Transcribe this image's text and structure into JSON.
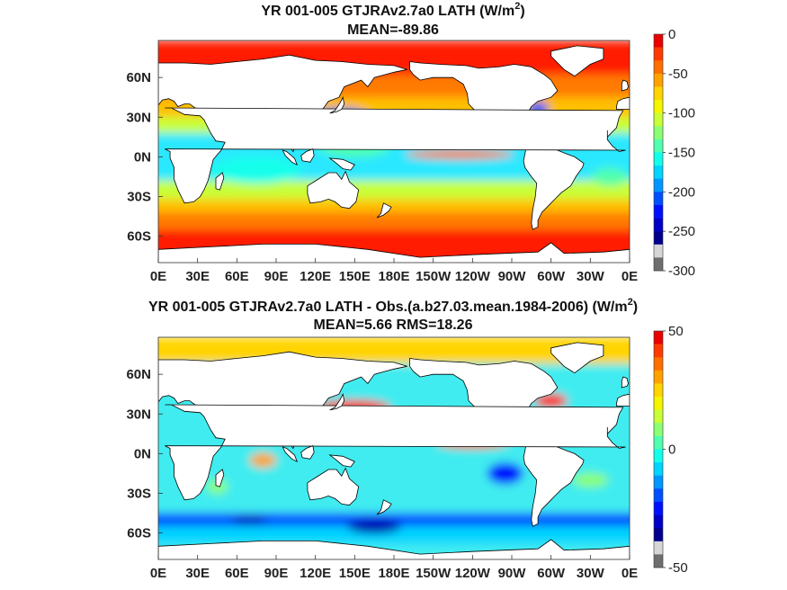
{
  "chart_data": [
    {
      "type": "heatmap",
      "title_line1": "YR 001-005 GTJRAv2.7a0  LATH (W/m",
      "title_sup": "2",
      "title_close": ")",
      "title_line2": "MEAN=-89.86",
      "x_ticks": [
        "0E",
        "30E",
        "60E",
        "90E",
        "120E",
        "150E",
        "180E",
        "150W",
        "120W",
        "90W",
        "60W",
        "30W",
        "0E"
      ],
      "x_values": [
        0,
        30,
        60,
        90,
        120,
        150,
        180,
        210,
        240,
        270,
        300,
        330,
        360
      ],
      "y_ticks": [
        "60N",
        "30N",
        "0N",
        "30S",
        "60S"
      ],
      "y_values": [
        60,
        30,
        0,
        -30,
        -60
      ],
      "xlim": [
        0,
        360
      ],
      "ylim": [
        -80,
        88
      ],
      "colorbar": {
        "ticks": [
          "0",
          "-50",
          "-100",
          "-150",
          "-200",
          "-250",
          "-300"
        ],
        "tick_values": [
          0,
          -50,
          -100,
          -150,
          -200,
          -250,
          -300
        ],
        "range": [
          -300,
          0
        ],
        "colors": [
          "#e90000",
          "#ff3a00",
          "#ff6e00",
          "#ffa200",
          "#ffd400",
          "#f5f500",
          "#c8ff37",
          "#8cff73",
          "#50ffaf",
          "#14ffeb",
          "#00d4ff",
          "#0096ff",
          "#0050ff",
          "#0010ff",
          "#0000c8",
          "#00008c",
          "#d6d6d6",
          "#6e6e6e"
        ]
      },
      "field_colors": {
        "land": "#ffffff",
        "high_lat": "#ff1a00",
        "mid_lat": "#ff9600",
        "subtrop": "#c8ff37",
        "tropics": "#2aeeff",
        "warm_pool": "#50ffaf",
        "kuroshio": "#0060ff"
      }
    },
    {
      "type": "heatmap",
      "title_line1": "YR 001-005 GTJRAv2.7a0 LATH - Obs.(a.b27.03.mean.1984-2006) (W/m",
      "title_sup": "2",
      "title_close": ")",
      "title_line2": "MEAN=5.66 RMS=18.26",
      "x_ticks": [
        "0E",
        "30E",
        "60E",
        "90E",
        "120E",
        "150E",
        "180E",
        "150W",
        "120W",
        "90W",
        "60W",
        "30W",
        "0E"
      ],
      "x_values": [
        0,
        30,
        60,
        90,
        120,
        150,
        180,
        210,
        240,
        270,
        300,
        330,
        360
      ],
      "y_ticks": [
        "60N",
        "30N",
        "0N",
        "30S",
        "60S"
      ],
      "y_values": [
        60,
        30,
        0,
        -30,
        -60
      ],
      "xlim": [
        0,
        360
      ],
      "ylim": [
        -80,
        88
      ],
      "colorbar": {
        "ticks": [
          "50",
          "0",
          "-50"
        ],
        "tick_values": [
          50,
          0,
          -50
        ],
        "range": [
          -50,
          50
        ],
        "colors": [
          "#e90000",
          "#ff3a00",
          "#ff6e00",
          "#ffa200",
          "#ffd400",
          "#f5f500",
          "#c8ff37",
          "#8cff73",
          "#50ffaf",
          "#14ffeb",
          "#00d4ff",
          "#0096ff",
          "#0050ff",
          "#0010ff",
          "#0000c8",
          "#00008c",
          "#d6d6d6",
          "#6e6e6e"
        ]
      },
      "field_colors": {
        "land": "#ffffff",
        "base": "#40f0f0",
        "pos": "#ff3a00",
        "neg": "#0040ff",
        "strong_neg": "#0000b0",
        "mild": "#aaff55"
      }
    }
  ]
}
